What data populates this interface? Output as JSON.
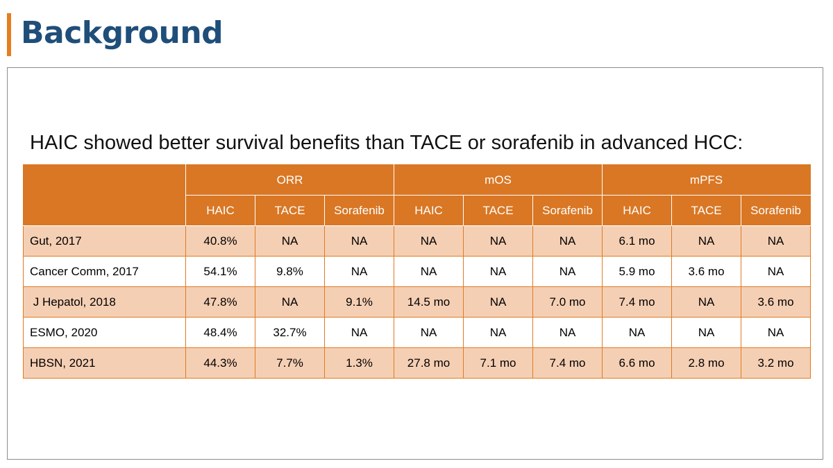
{
  "slide": {
    "title": "Background",
    "subtitle": "HAIC showed better survival benefits than TACE or sorafenib in advanced HCC:"
  },
  "colors": {
    "accent_bar": "#e67e22",
    "title_text": "#1f4e79",
    "table_header": "#d97724",
    "row_shaded": "#f5cfb4",
    "row_plain": "#ffffff"
  },
  "table": {
    "groups": [
      "ORR",
      "mOS",
      "mPFS"
    ],
    "subheaders": [
      "HAIC",
      "TACE",
      "Sorafenib",
      "HAIC",
      "TACE",
      "Sorafenib",
      "HAIC",
      "TACE",
      "Sorafenib"
    ],
    "rows": [
      {
        "study": "Gut, 2017",
        "values": [
          "40.8%",
          "NA",
          "NA",
          "NA",
          "NA",
          "NA",
          "6.1 mo",
          "NA",
          "NA"
        ]
      },
      {
        "study": "Cancer Comm, 2017",
        "values": [
          "54.1%",
          "9.8%",
          "NA",
          "NA",
          "NA",
          "NA",
          "5.9 mo",
          "3.6 mo",
          "NA"
        ]
      },
      {
        "study": " J Hepatol, 2018",
        "values": [
          "47.8%",
          "NA",
          "9.1%",
          "14.5 mo",
          "NA",
          "7.0 mo",
          "7.4 mo",
          "NA",
          "3.6 mo"
        ]
      },
      {
        "study": "ESMO, 2020",
        "values": [
          "48.4%",
          "32.7%",
          "NA",
          "NA",
          "NA",
          "NA",
          "NA",
          "NA",
          "NA"
        ]
      },
      {
        "study": "HBSN, 2021",
        "values": [
          "44.3%",
          "7.7%",
          "1.3%",
          "27.8 mo",
          "7.1 mo",
          "7.4 mo",
          "6.6 mo",
          "2.8 mo",
          "3.2 mo"
        ]
      }
    ]
  }
}
